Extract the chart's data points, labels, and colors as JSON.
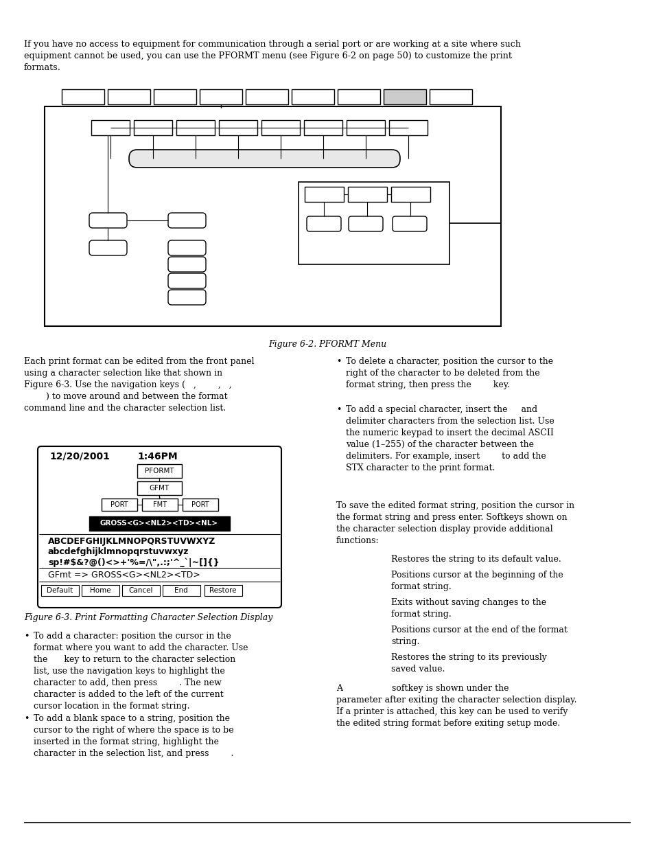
{
  "bg_color": "#ffffff",
  "figure_caption1": "Figure 6-2. PFORMT Menu",
  "figure_caption2": "Figure 6-3. Print Formatting Character Selection Display",
  "intro_text": "If you have no access to equipment for communication through a serial port or are working at a site where such\nequipment cannot be used, you can use the PFORMT menu (see Figure 6-2 on page 50) to customize the print\nformats.",
  "left_col_text1": "Each print format can be edited from the front panel\nusing a character selection like that shown in\nFigure 6-3. Use the navigation keys (   ,        ,   ,\n        ) to move around and between the format\ncommand line and the character selection list.",
  "bullet1_left": "To add a character: position the cursor in the\nformat where you want to add the character. Use\nthe      key to return to the character selection\nlist, use the navigation keys to highlight the\ncharacter to add, then press        . The new\ncharacter is added to the left of the current\ncursor location in the format string.",
  "bullet2_left": "To add a blank space to a string, position the\ncursor to the right of where the space is to be\ninserted in the format string, highlight the\ncharacter in the selection list, and press        .",
  "bullet1_right": "To delete a character, position the cursor to the\nright of the character to be deleted from the\nformat string, then press the        key.",
  "bullet2_right": "To add a special character, insert the     and\ndelimiter characters from the selection list. Use\nthe numeric keypad to insert the decimal ASCII\nvalue (1–255) of the character between the\ndelimiters. For example, insert        to add the\nSTX character to the print format.",
  "save_text": "To save the edited format string, position the cursor in\nthe format string and press enter. Softkeys shown on\nthe character selection display provide additional\nfunctions:",
  "softkey_items": [
    "Restores the string to its default value.",
    "Positions cursor at the beginning of the\nformat string.",
    "Exits without saving changes to the\nformat string.",
    "Positions cursor at the end of the format\nstring.",
    "Restores the string to its previously\nsaved value."
  ],
  "softkey_suffix": "A                  softkey is shown under the\nparameter after exiting the character selection display.\nIf a printer is attached, this key can be used to verify\nthe edited string format before exiting setup mode."
}
